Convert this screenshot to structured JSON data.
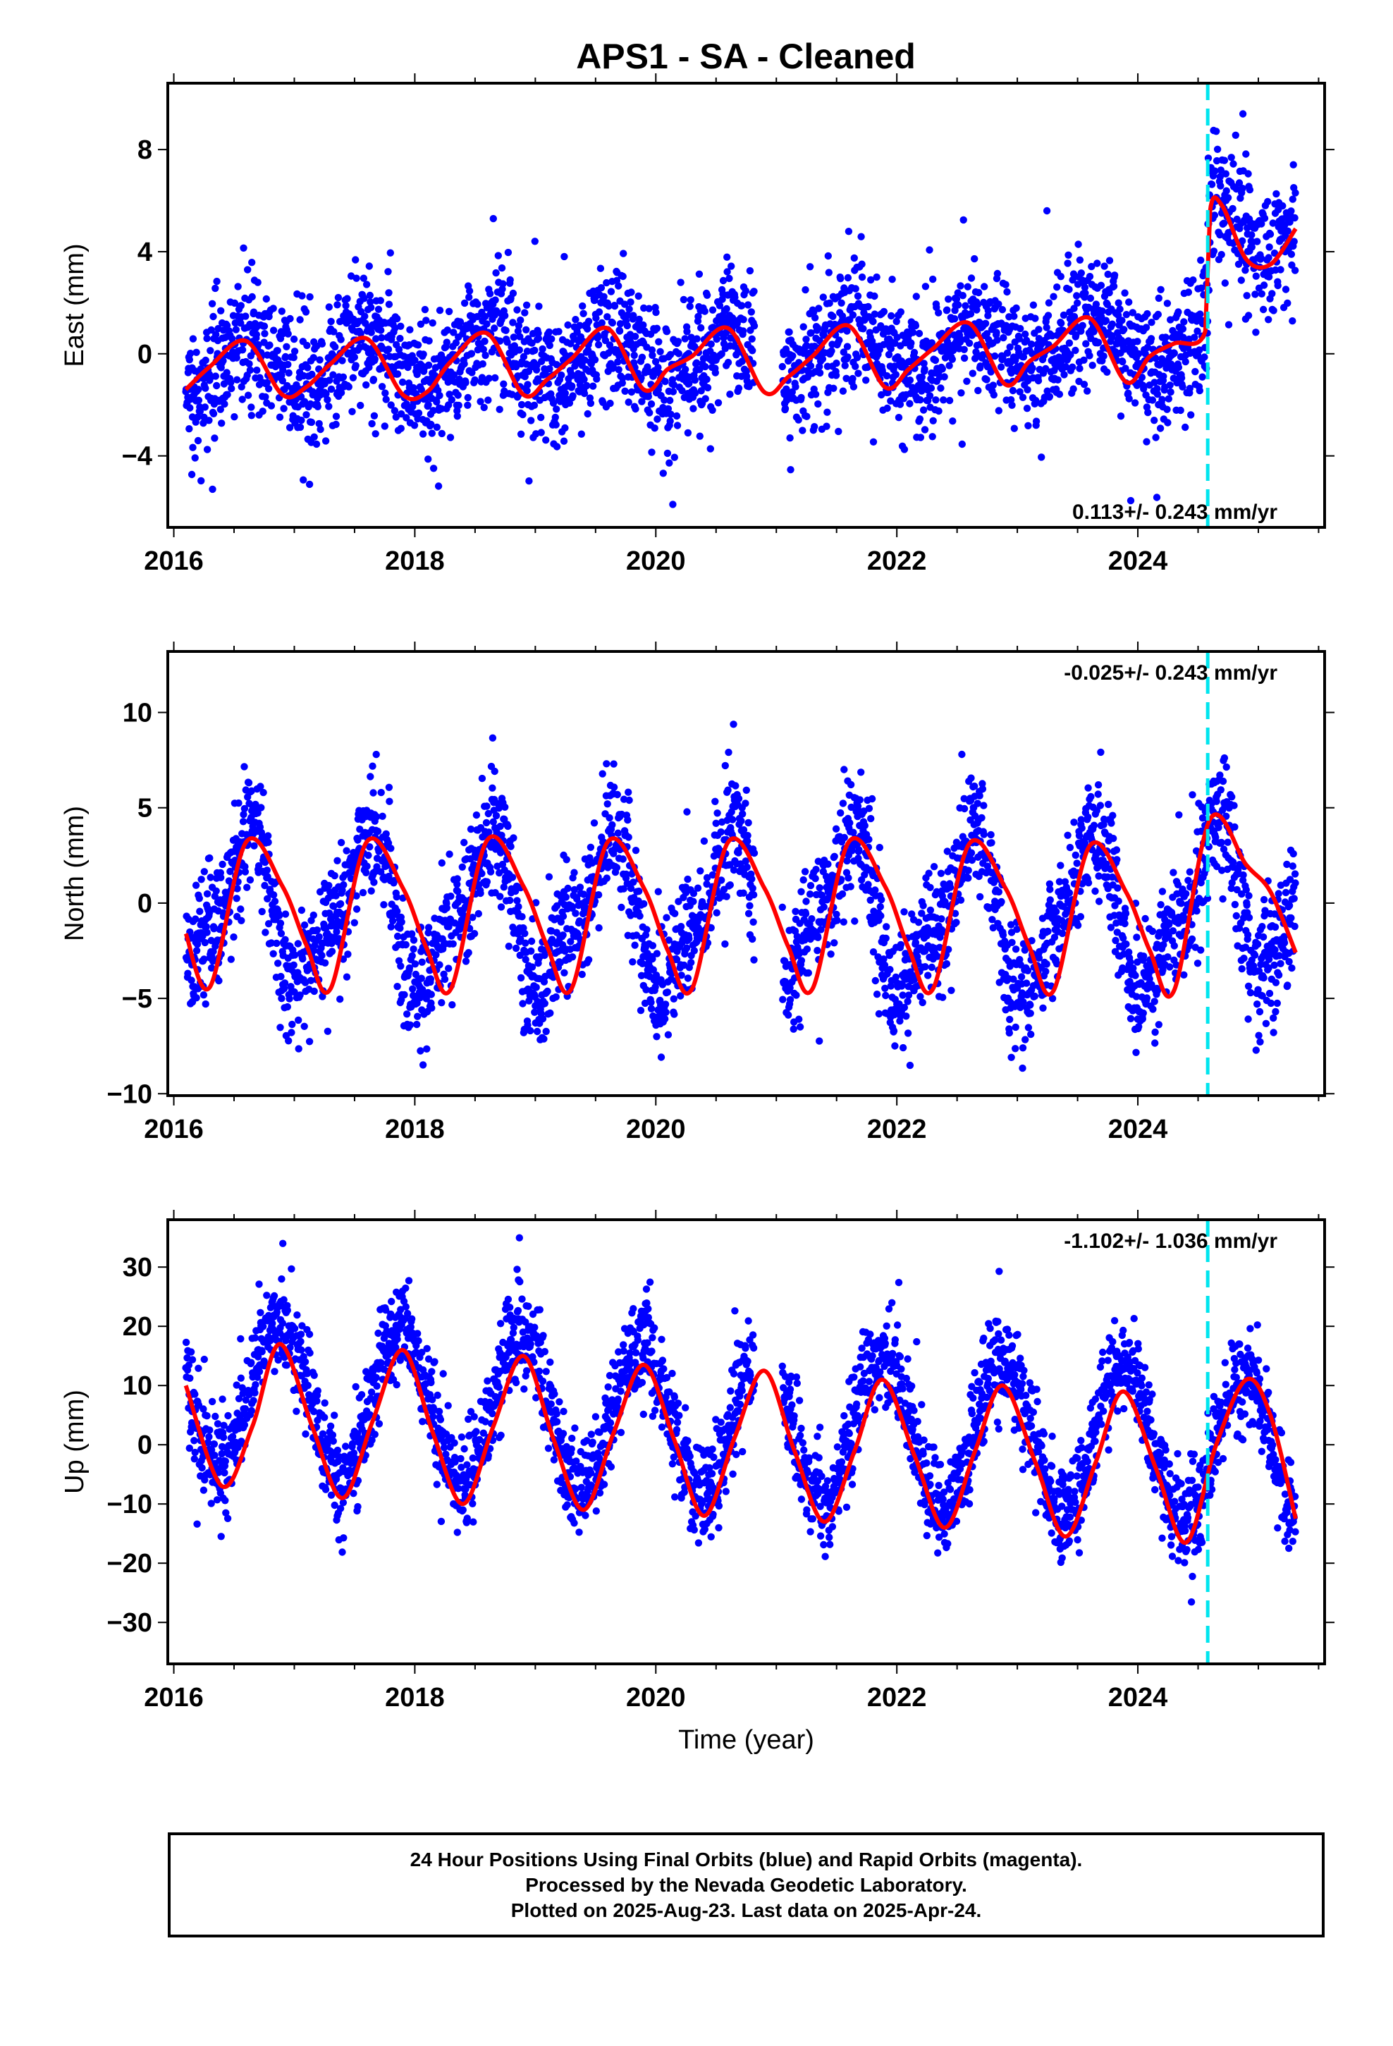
{
  "title": "APS1  - SA - Cleaned",
  "footer": {
    "line1": "24 Hour Positions Using Final Orbits (blue) and Rapid Orbits (magenta).",
    "line2": "Processed by the Nevada Geodetic Laboratory.",
    "line3": "Plotted on 2025-Aug-23. Last data on 2025-Apr-24."
  },
  "colors": {
    "points": "#0000ff",
    "fit": "#ff0000",
    "event_line": "#00e5ee",
    "axes": "#000000"
  },
  "chart_data": [
    {
      "type": "scatter",
      "component": "east",
      "ylabel": "East (mm)",
      "xlabel": "",
      "xlim": [
        2015.95,
        2025.55
      ],
      "ylim": [
        -6.8,
        10.6
      ],
      "xticks": [
        2016,
        2018,
        2020,
        2022,
        2024
      ],
      "xtick_labels": [
        "2016",
        "2018",
        "2020",
        "2022",
        "2024"
      ],
      "yticks": [
        -4,
        0,
        4,
        8
      ],
      "ytick_labels": [
        "−4",
        "0",
        "4",
        "8"
      ],
      "rate_label": "0.113+/- 0.243 mm/yr",
      "rate_label_position": "bottom-right",
      "event_line_x": 2024.58,
      "data_range_x": [
        2016.1,
        2025.31
      ],
      "model": {
        "seasonal_amplitude_annual": 1.0,
        "seasonal_phase_peak": 0.62,
        "offset_before": 0.0,
        "offset_after": 4.6,
        "trend_mm_per_yr": 0.11,
        "noise_sd": 1.3
      },
      "fit_curve": {
        "x": [
          2016.1,
          2016.3,
          2016.6,
          2016.9,
          2017.1,
          2017.3,
          2017.6,
          2017.9,
          2018.1,
          2018.3,
          2018.6,
          2018.9,
          2019.1,
          2019.3,
          2019.6,
          2019.9,
          2020.1,
          2020.3,
          2020.6,
          2020.9,
          2021.1,
          2021.3,
          2021.6,
          2021.9,
          2022.1,
          2022.3,
          2022.6,
          2022.9,
          2023.1,
          2023.3,
          2023.6,
          2023.9,
          2024.1,
          2024.3,
          2024.56,
          2024.6,
          2024.7,
          2024.9,
          2025.1,
          2025.31
        ],
        "y": [
          -1.4,
          -0.5,
          0.5,
          -1.6,
          -1.3,
          -0.4,
          0.6,
          -1.6,
          -1.5,
          -0.3,
          0.8,
          -1.6,
          -1.0,
          -0.2,
          1.0,
          -1.4,
          -0.6,
          -0.1,
          1.0,
          -1.5,
          -0.9,
          -0.1,
          1.1,
          -1.3,
          -0.6,
          0.2,
          1.2,
          -1.2,
          -0.3,
          0.3,
          1.4,
          -1.1,
          -0.1,
          0.4,
          0.9,
          5.6,
          5.8,
          3.7,
          3.5,
          4.9
        ]
      }
    },
    {
      "type": "scatter",
      "component": "north",
      "ylabel": "North (mm)",
      "xlabel": "",
      "xlim": [
        2015.95,
        2025.55
      ],
      "ylim": [
        -10.1,
        13.2
      ],
      "xticks": [
        2016,
        2018,
        2020,
        2022,
        2024
      ],
      "xtick_labels": [
        "2016",
        "2018",
        "2020",
        "2022",
        "2024"
      ],
      "yticks": [
        -10,
        -5,
        0,
        5,
        10
      ],
      "ytick_labels": [
        "−10",
        "−5",
        "0",
        "5",
        "10"
      ],
      "rate_label": "-0.025+/- 0.243 mm/yr",
      "rate_label_position": "top-right",
      "event_line_x": 2024.58,
      "data_range_x": [
        2016.1,
        2025.31
      ],
      "model": {
        "seasonal_amplitude_annual": 3.7,
        "seasonal_phase_peak": 0.6,
        "offset_before": -0.6,
        "offset_after": 0.4,
        "trend_mm_per_yr": -0.02,
        "noise_sd": 1.6
      },
      "fit_curve": {
        "x": [
          2016.1,
          2016.3,
          2016.6,
          2016.9,
          2017.1,
          2017.3,
          2017.6,
          2017.9,
          2018.1,
          2018.3,
          2018.6,
          2018.9,
          2019.1,
          2019.3,
          2019.6,
          2019.9,
          2020.1,
          2020.3,
          2020.6,
          2020.9,
          2021.1,
          2021.3,
          2021.6,
          2021.9,
          2022.1,
          2022.3,
          2022.6,
          2022.9,
          2023.1,
          2023.3,
          2023.6,
          2023.9,
          2024.1,
          2024.3,
          2024.6,
          2024.9,
          2025.1,
          2025.31
        ],
        "y": [
          -1.6,
          -4.4,
          3.2,
          0.9,
          -2.2,
          -4.5,
          3.2,
          0.8,
          -2.4,
          -4.5,
          3.3,
          0.9,
          -2.3,
          -4.5,
          3.2,
          0.8,
          -2.5,
          -4.5,
          3.2,
          0.8,
          -2.3,
          -4.5,
          3.2,
          0.9,
          -2.4,
          -4.5,
          3.1,
          0.8,
          -2.3,
          -4.6,
          3.0,
          0.6,
          -2.5,
          -4.6,
          4.4,
          2.0,
          0.6,
          -2.6
        ]
      }
    },
    {
      "type": "scatter",
      "component": "up",
      "ylabel": "Up (mm)",
      "xlabel": "Time (year)",
      "xlim": [
        2015.95,
        2025.55
      ],
      "ylim": [
        -37,
        38
      ],
      "xticks": [
        2016,
        2018,
        2020,
        2022,
        2024
      ],
      "xtick_labels": [
        "2016",
        "2018",
        "2020",
        "2022",
        "2024"
      ],
      "yticks": [
        -30,
        -20,
        -10,
        0,
        10,
        20,
        30
      ],
      "ytick_labels": [
        "−30",
        "−20",
        "−10",
        "0",
        "10",
        "20",
        "30"
      ],
      "rate_label": "-1.102+/- 1.036 mm/yr",
      "rate_label_position": "top-right",
      "event_line_x": 2024.58,
      "data_range_x": [
        2016.1,
        2025.31
      ],
      "model": {
        "seasonal_amplitude_annual": 12.5,
        "seasonal_phase_peak": 0.88,
        "offset_before": 4.0,
        "offset_after": 4.0,
        "trend_mm_per_yr": -1.1,
        "noise_sd": 4.2
      },
      "fit_curve": {
        "x": [
          2016.1,
          2016.4,
          2016.65,
          2016.88,
          2017.15,
          2017.4,
          2017.65,
          2017.9,
          2018.15,
          2018.4,
          2018.65,
          2018.9,
          2019.15,
          2019.4,
          2019.65,
          2019.9,
          2020.15,
          2020.4,
          2020.65,
          2020.9,
          2021.15,
          2021.4,
          2021.65,
          2021.88,
          2022.15,
          2022.4,
          2022.65,
          2022.88,
          2023.15,
          2023.4,
          2023.65,
          2023.88,
          2024.15,
          2024.4,
          2024.65,
          2024.9,
          2025.1,
          2025.31
        ],
        "y": [
          10,
          -7,
          3,
          17,
          3,
          -9,
          4,
          16,
          2,
          -10,
          3,
          15,
          1,
          -11,
          2,
          13.5,
          1,
          -12,
          1,
          12.5,
          -1,
          -13,
          -1,
          11,
          -2,
          -14,
          -1,
          10,
          -3,
          -15.5,
          -3,
          9,
          -4,
          -16.5,
          0,
          11,
          5,
          -12.5
        ]
      }
    }
  ]
}
